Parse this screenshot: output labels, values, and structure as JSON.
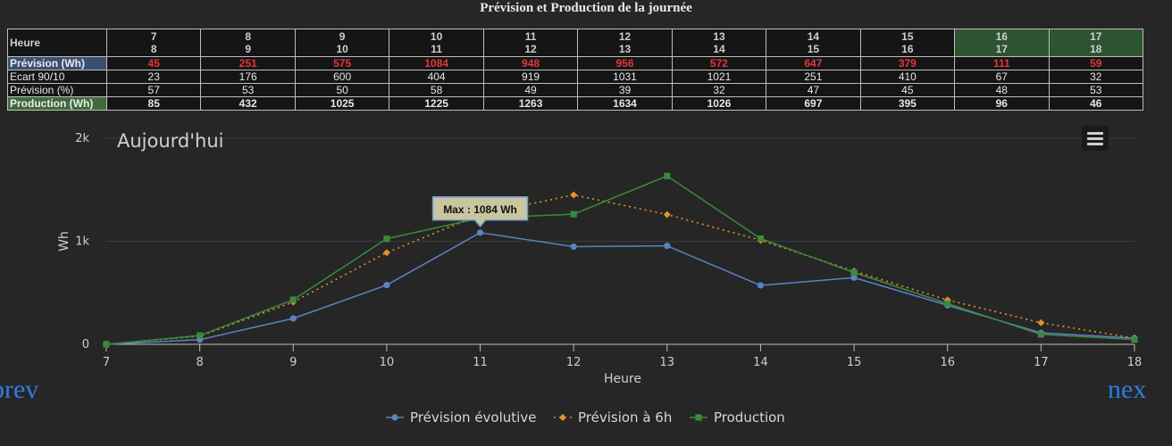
{
  "title": "Prévision et Production de la journée",
  "table": {
    "head_label": "Heure",
    "hours": [
      {
        "a": "7",
        "b": "8"
      },
      {
        "a": "8",
        "b": "9"
      },
      {
        "a": "9",
        "b": "10"
      },
      {
        "a": "10",
        "b": "11"
      },
      {
        "a": "11",
        "b": "12"
      },
      {
        "a": "12",
        "b": "13"
      },
      {
        "a": "13",
        "b": "14"
      },
      {
        "a": "14",
        "b": "15"
      },
      {
        "a": "15",
        "b": "16"
      },
      {
        "a": "16",
        "b": "17"
      },
      {
        "a": "17",
        "b": "18"
      }
    ],
    "highlight_color": "#2d5431",
    "rows": [
      {
        "label": "Prévision (Wh)",
        "values": [
          "45",
          "251",
          "575",
          "1084",
          "948",
          "956",
          "572",
          "647",
          "379",
          "111",
          "59"
        ]
      },
      {
        "label": "Ecart 90/10",
        "values": [
          "23",
          "176",
          "600",
          "404",
          "919",
          "1031",
          "1021",
          "251",
          "410",
          "67",
          "32"
        ]
      },
      {
        "label": "Prévision (%)",
        "values": [
          "57",
          "53",
          "50",
          "58",
          "49",
          "39",
          "32",
          "47",
          "45",
          "48",
          "53"
        ]
      },
      {
        "label": "Production (Wh)",
        "values": [
          "85",
          "432",
          "1025",
          "1225",
          "1263",
          "1634",
          "1026",
          "697",
          "395",
          "96",
          "46"
        ]
      }
    ]
  },
  "nav": {
    "prev": "prev",
    "next": "nex"
  },
  "chart_data": {
    "type": "line",
    "title": "Aujourd'hui",
    "xlabel": "Heure",
    "ylabel": "Wh",
    "x": [
      7,
      8,
      9,
      10,
      11,
      12,
      13,
      14,
      15,
      16,
      17,
      18
    ],
    "xlim": [
      7,
      18
    ],
    "ylim": [
      0,
      2000
    ],
    "yticks": [
      {
        "v": 0,
        "label": "0"
      },
      {
        "v": 1000,
        "label": "1k"
      },
      {
        "v": 2000,
        "label": "2k"
      }
    ],
    "grid": true,
    "legend_position": "bottom",
    "series": [
      {
        "name": "Prévision évolutive",
        "color": "#5b82c2",
        "style": "solid",
        "marker": "circle",
        "x": [
          7,
          8,
          9,
          10,
          11,
          12,
          13,
          14,
          15,
          16,
          17,
          18
        ],
        "values": [
          0,
          45,
          251,
          575,
          1084,
          948,
          956,
          572,
          647,
          379,
          111,
          59
        ]
      },
      {
        "name": "Prévision à 6h",
        "color": "#e0922b",
        "style": "dotted",
        "marker": "diamond",
        "x": [
          7,
          8,
          9,
          10,
          11,
          12,
          13,
          14,
          15,
          16,
          17,
          18
        ],
        "values": [
          0,
          80,
          410,
          890,
          1260,
          1450,
          1260,
          1010,
          710,
          430,
          210,
          60
        ]
      },
      {
        "name": "Production",
        "color": "#3a8a3d",
        "style": "solid",
        "marker": "square",
        "x": [
          7,
          8,
          9,
          10,
          11,
          12,
          13,
          14,
          15,
          16,
          17,
          18
        ],
        "values": [
          0,
          85,
          432,
          1025,
          1225,
          1263,
          1634,
          1026,
          697,
          395,
          96,
          46
        ]
      }
    ],
    "annotation": {
      "text": "Max : 1084 Wh",
      "x": 11,
      "y": 1084
    }
  }
}
